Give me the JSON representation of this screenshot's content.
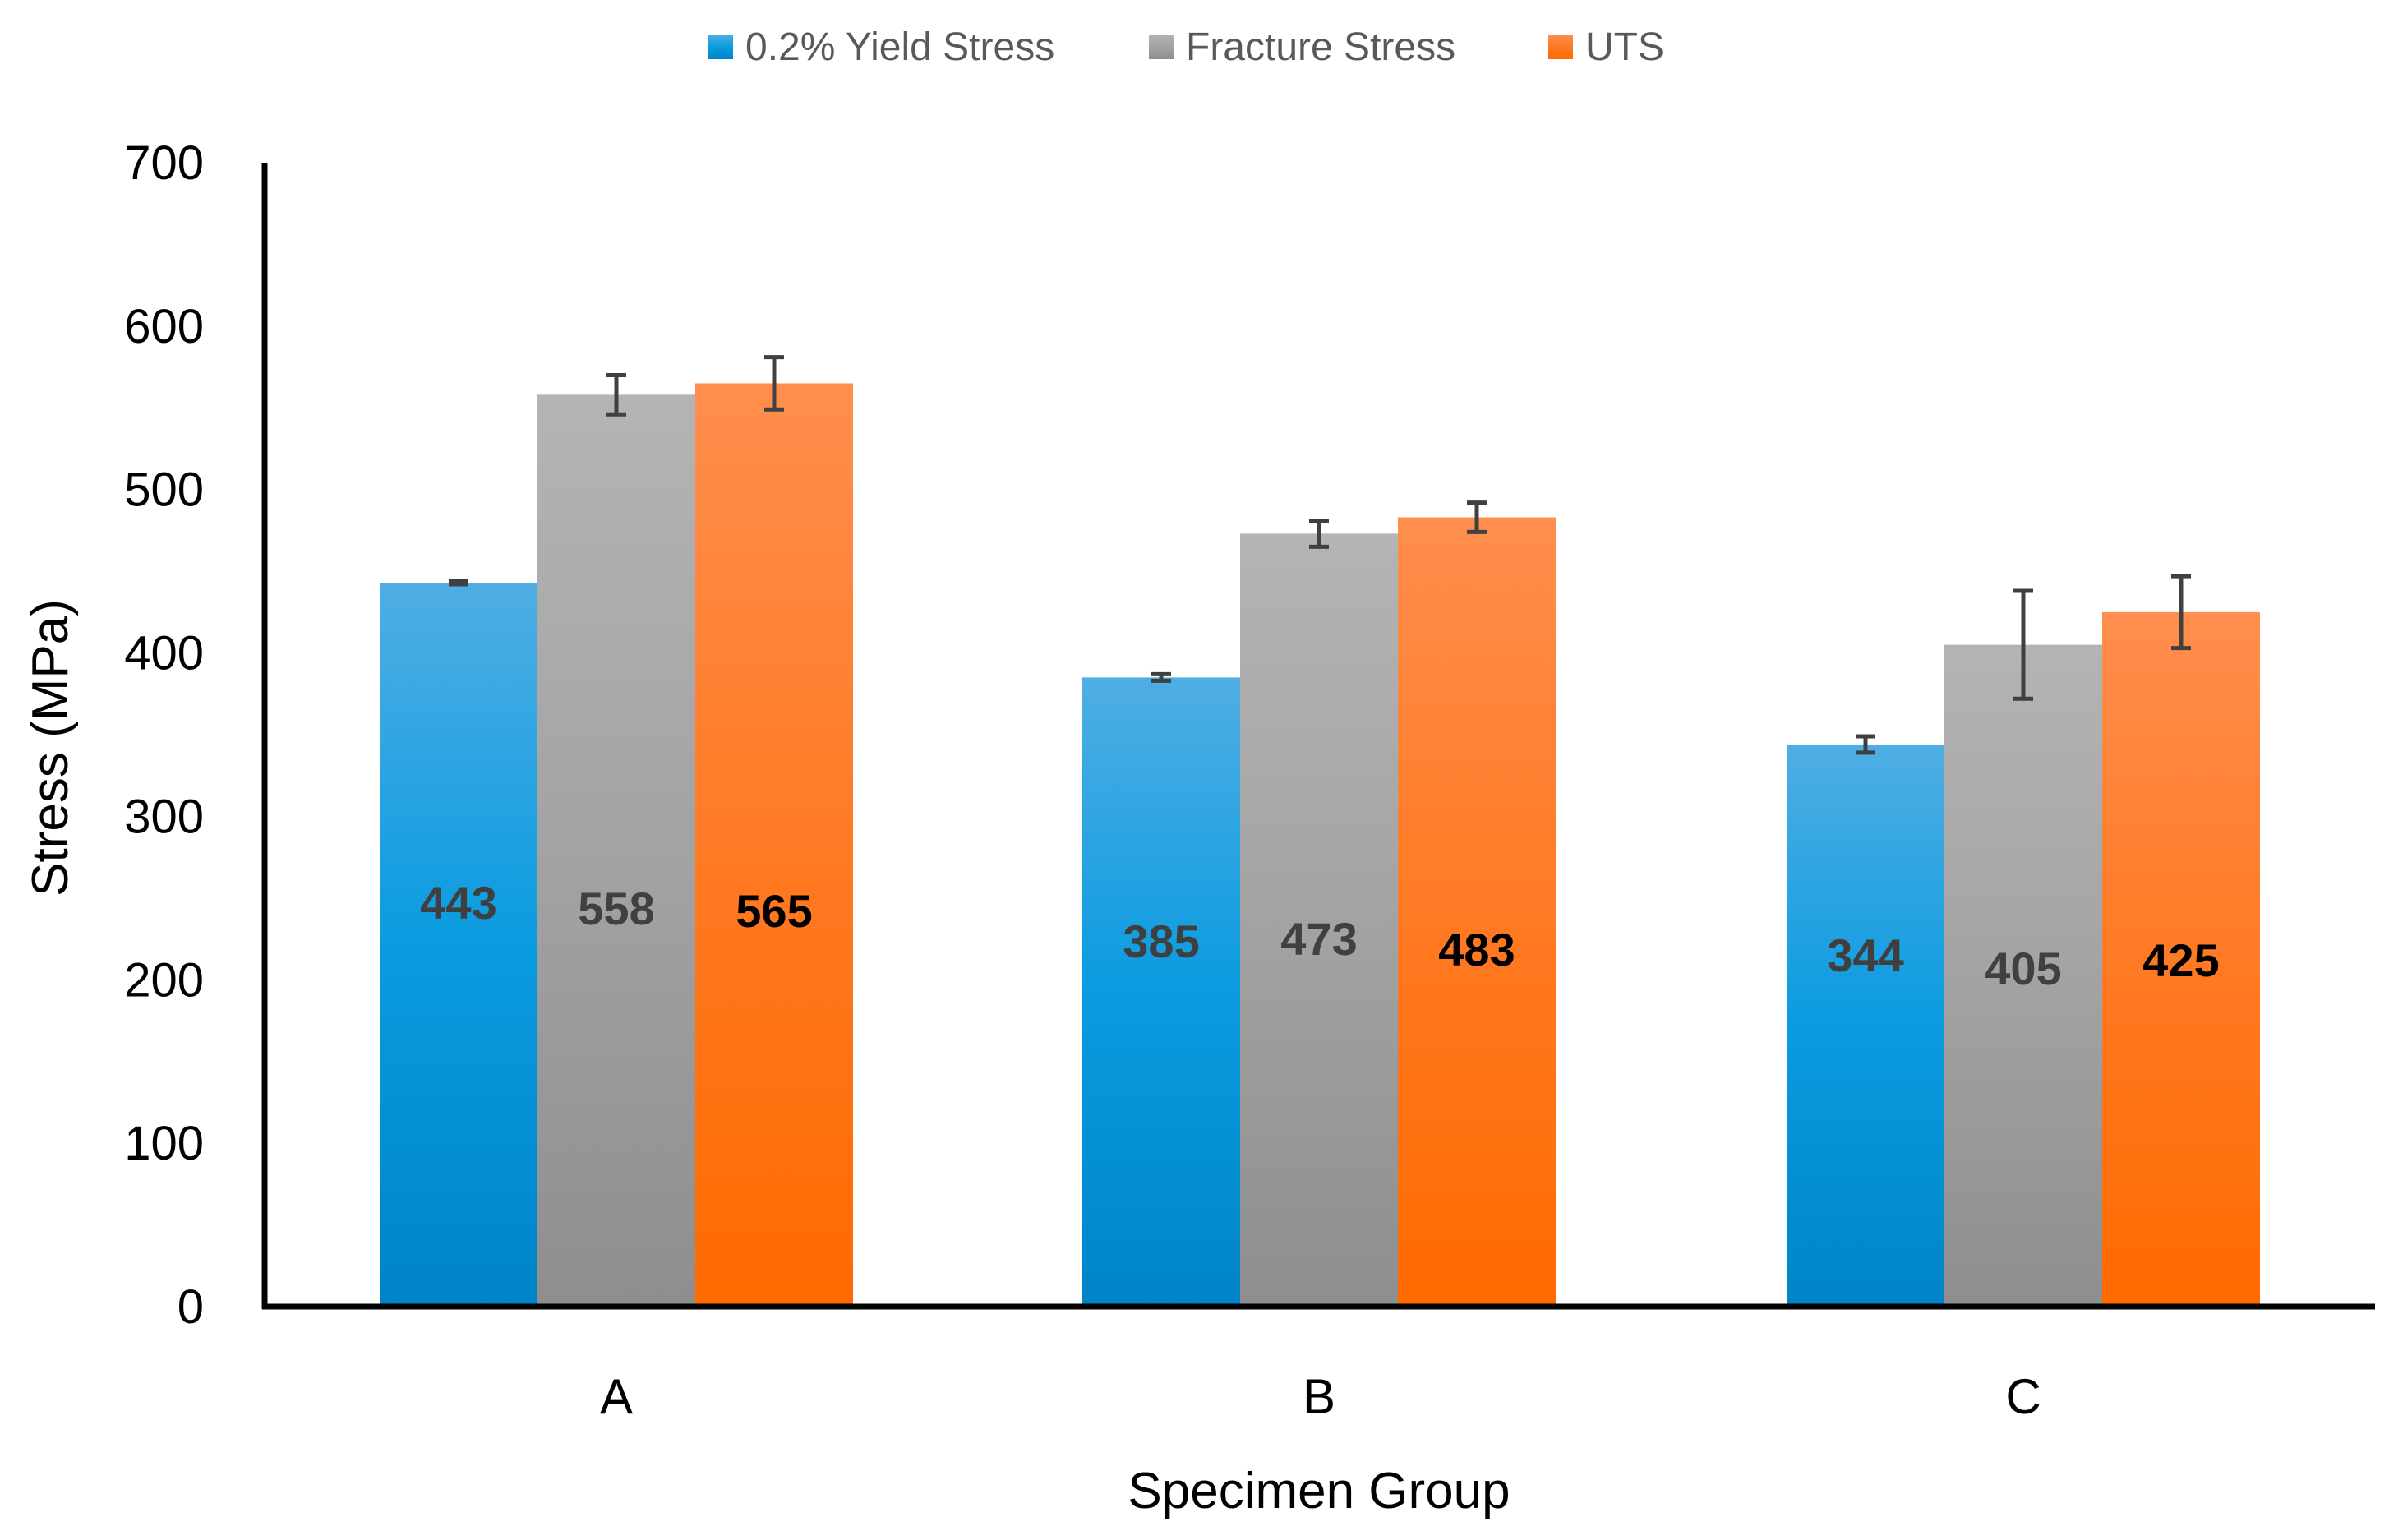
{
  "chart_data": {
    "type": "bar",
    "title": "",
    "xlabel": "Specimen Group",
    "ylabel": "Stress (MPa)",
    "ylim": [
      0,
      700
    ],
    "yticks": [
      0,
      100,
      200,
      300,
      400,
      500,
      600,
      700
    ],
    "grid": false,
    "legend_position": "top-center",
    "categories": [
      "A",
      "B",
      "C"
    ],
    "series": [
      {
        "name": "0.2% Yield Stress",
        "color": "#1F96D8",
        "label_color": "#3F3F3F",
        "values": [
          443,
          385,
          344
        ],
        "error": [
          1,
          2,
          5
        ]
      },
      {
        "name": "Fracture Stress",
        "color": "#A6A6A6",
        "label_color": "#404040",
        "values": [
          558,
          473,
          405
        ],
        "error": [
          12,
          8,
          33
        ]
      },
      {
        "name": "UTS",
        "color": "#FF7F27",
        "label_color": "#000000",
        "values": [
          565,
          483,
          425
        ],
        "error": [
          16,
          9,
          22
        ]
      }
    ]
  }
}
